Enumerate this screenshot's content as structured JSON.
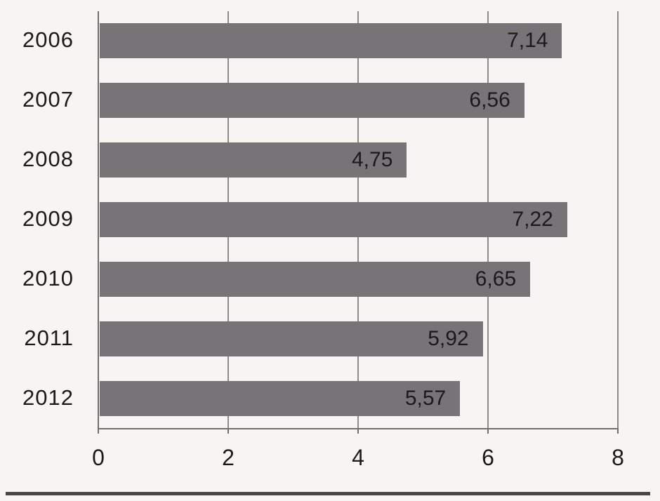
{
  "chart_data": {
    "type": "bar",
    "orientation": "horizontal",
    "title": "",
    "xlabel": "",
    "ylabel": "",
    "categories": [
      "2006",
      "2007",
      "2008",
      "2009",
      "2010",
      "2011",
      "2012"
    ],
    "values": [
      7.14,
      6.56,
      4.75,
      7.22,
      6.65,
      5.92,
      5.57
    ],
    "value_labels": [
      "7,14",
      "6,56",
      "4,75",
      "7,22",
      "6,65",
      "5,92",
      "5,57"
    ],
    "x_ticks": [
      0,
      2,
      4,
      6,
      8
    ],
    "x_tick_labels": [
      "0",
      "2",
      "4",
      "6",
      "8"
    ],
    "xlim": [
      0,
      8
    ],
    "grid": true,
    "legend": false,
    "value_label_position": "inside-end",
    "colors": {
      "bar": "#767476",
      "grid": "#8c8c8c",
      "axis": "#6f6f6f",
      "label": "#1a1a1a",
      "background": "#f7f5f3",
      "bottom_rule": "#474747"
    }
  }
}
